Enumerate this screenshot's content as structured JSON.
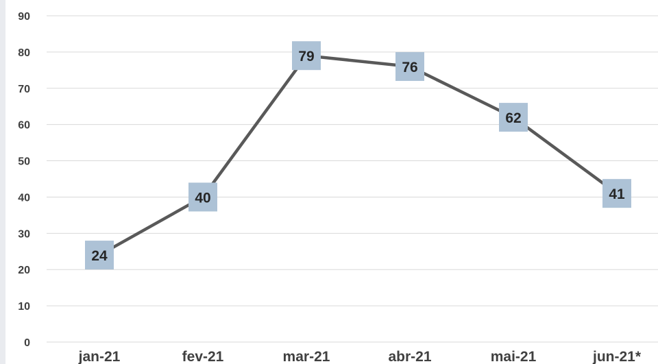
{
  "chart_data": {
    "type": "line",
    "categories": [
      "jan-21",
      "fev-21",
      "mar-21",
      "abr-21",
      "mai-21",
      "jun-21*"
    ],
    "series": [
      {
        "values": [
          24,
          40,
          79,
          76,
          62,
          41
        ]
      }
    ],
    "ylim": [
      0,
      90
    ],
    "yticks": [
      0,
      10,
      20,
      30,
      40,
      50,
      60,
      70,
      80,
      90
    ],
    "grid": true,
    "legend": "none",
    "data_labels": true,
    "colors": {
      "line": "#595959",
      "label_box": "#adc2d6",
      "gridline": "#d9d9d9",
      "text": "#404040"
    }
  }
}
